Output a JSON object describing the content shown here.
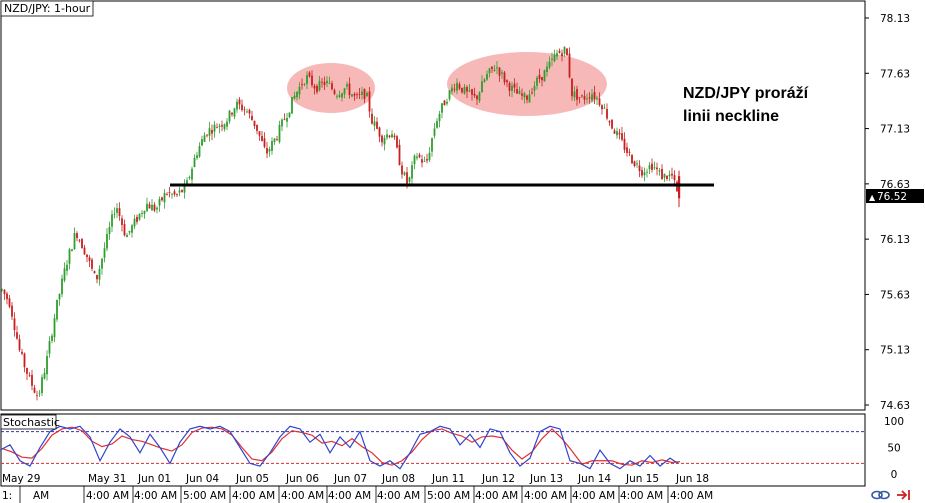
{
  "chart_data": {
    "type": "candlestick",
    "title": "NZD/JPY: 1-hour",
    "annotation": [
      "NZD/JPY proráží",
      "linii neckline"
    ],
    "y_ticks": [
      78.13,
      77.63,
      77.13,
      76.63,
      76.13,
      75.63,
      75.13,
      74.63
    ],
    "ylim": [
      74.5,
      78.3
    ],
    "last_price": "76.52",
    "neckline": 76.62,
    "x_labels": [
      "May 29",
      "May 31",
      "Jun 01",
      "Jun 04",
      "Jun 05",
      "Jun 06",
      "Jun 07",
      "Jun 08",
      "Jun 11",
      "Jun 12",
      "Jun 13",
      "Jun 14",
      "Jun 15",
      "Jun 18"
    ],
    "x_time_labels": [
      "1:",
      "AM",
      "4:00 AM",
      "4:00 AM",
      "5:00 AM",
      "4:00 AM",
      "4:00 AM",
      "4:00 AM",
      "4:00 AM",
      "5:00 AM",
      "4:00 AM",
      "4:00 AM",
      "4:00 AM",
      "4:00 AM",
      "4:00 AM"
    ],
    "price_path": [
      [
        0,
        75.7
      ],
      [
        10,
        75.55
      ],
      [
        20,
        75.1
      ],
      [
        30,
        74.85
      ],
      [
        38,
        74.7
      ],
      [
        46,
        75.0
      ],
      [
        56,
        75.5
      ],
      [
        66,
        75.9
      ],
      [
        76,
        76.2
      ],
      [
        86,
        76.0
      ],
      [
        96,
        75.75
      ],
      [
        106,
        76.1
      ],
      [
        116,
        76.45
      ],
      [
        126,
        76.15
      ],
      [
        136,
        76.3
      ],
      [
        146,
        76.45
      ],
      [
        156,
        76.4
      ],
      [
        166,
        76.55
      ],
      [
        176,
        76.52
      ],
      [
        186,
        76.6
      ],
      [
        196,
        76.9
      ],
      [
        206,
        77.1
      ],
      [
        216,
        77.15
      ],
      [
        226,
        77.2
      ],
      [
        236,
        77.35
      ],
      [
        246,
        77.3
      ],
      [
        256,
        77.15
      ],
      [
        266,
        76.9
      ],
      [
        276,
        77.05
      ],
      [
        286,
        77.25
      ],
      [
        296,
        77.45
      ],
      [
        306,
        77.6
      ],
      [
        316,
        77.5
      ],
      [
        326,
        77.55
      ],
      [
        336,
        77.45
      ],
      [
        346,
        77.5
      ],
      [
        356,
        77.4
      ],
      [
        366,
        77.45
      ],
      [
        372,
        77.2
      ],
      [
        382,
        77.05
      ],
      [
        392,
        77.1
      ],
      [
        402,
        76.75
      ],
      [
        408,
        76.62
      ],
      [
        416,
        76.9
      ],
      [
        426,
        76.8
      ],
      [
        436,
        77.2
      ],
      [
        446,
        77.4
      ],
      [
        456,
        77.55
      ],
      [
        466,
        77.45
      ],
      [
        476,
        77.4
      ],
      [
        486,
        77.6
      ],
      [
        496,
        77.7
      ],
      [
        506,
        77.55
      ],
      [
        516,
        77.45
      ],
      [
        526,
        77.4
      ],
      [
        536,
        77.55
      ],
      [
        546,
        77.65
      ],
      [
        556,
        77.8
      ],
      [
        566,
        77.85
      ],
      [
        572,
        77.45
      ],
      [
        582,
        77.4
      ],
      [
        592,
        77.45
      ],
      [
        602,
        77.35
      ],
      [
        612,
        77.15
      ],
      [
        622,
        77.0
      ],
      [
        632,
        76.85
      ],
      [
        642,
        76.75
      ],
      [
        652,
        76.8
      ],
      [
        662,
        76.7
      ],
      [
        672,
        76.7
      ],
      [
        678,
        76.52
      ]
    ],
    "stochastic": {
      "label": "Stochastic",
      "levels": [
        80,
        20
      ],
      "ticks": [
        100,
        50,
        0
      ],
      "k": [
        [
          0,
          45
        ],
        [
          10,
          55
        ],
        [
          20,
          25
        ],
        [
          30,
          15
        ],
        [
          40,
          50
        ],
        [
          50,
          80
        ],
        [
          60,
          90
        ],
        [
          70,
          85
        ],
        [
          80,
          90
        ],
        [
          90,
          70
        ],
        [
          100,
          25
        ],
        [
          110,
          60
        ],
        [
          120,
          85
        ],
        [
          130,
          70
        ],
        [
          140,
          40
        ],
        [
          150,
          75
        ],
        [
          160,
          50
        ],
        [
          170,
          20
        ],
        [
          180,
          60
        ],
        [
          190,
          85
        ],
        [
          200,
          90
        ],
        [
          210,
          85
        ],
        [
          220,
          90
        ],
        [
          230,
          80
        ],
        [
          240,
          50
        ],
        [
          250,
          20
        ],
        [
          260,
          15
        ],
        [
          270,
          40
        ],
        [
          280,
          70
        ],
        [
          290,
          90
        ],
        [
          300,
          85
        ],
        [
          310,
          60
        ],
        [
          320,
          75
        ],
        [
          330,
          40
        ],
        [
          340,
          70
        ],
        [
          350,
          50
        ],
        [
          360,
          80
        ],
        [
          370,
          25
        ],
        [
          380,
          15
        ],
        [
          390,
          25
        ],
        [
          400,
          10
        ],
        [
          410,
          40
        ],
        [
          420,
          75
        ],
        [
          430,
          80
        ],
        [
          440,
          90
        ],
        [
          450,
          85
        ],
        [
          460,
          55
        ],
        [
          470,
          75
        ],
        [
          480,
          50
        ],
        [
          490,
          85
        ],
        [
          500,
          80
        ],
        [
          510,
          40
        ],
        [
          520,
          15
        ],
        [
          530,
          30
        ],
        [
          540,
          80
        ],
        [
          550,
          90
        ],
        [
          560,
          85
        ],
        [
          570,
          25
        ],
        [
          580,
          20
        ],
        [
          590,
          10
        ],
        [
          600,
          45
        ],
        [
          610,
          20
        ],
        [
          620,
          10
        ],
        [
          630,
          25
        ],
        [
          640,
          15
        ],
        [
          650,
          35
        ],
        [
          660,
          15
        ],
        [
          670,
          30
        ],
        [
          678,
          20
        ]
      ]
    }
  },
  "colors": {
    "bull": "#2E9E2E",
    "bear": "#C81E1E",
    "neckline": "#000000",
    "ellipse": "#F07E7E",
    "stoch_k": "#3344CC",
    "stoch_d": "#E03030",
    "level_line": "#3030C0",
    "level_line_low": "#D03030"
  },
  "icons": [
    "chain-link-icon",
    "arrow-right-icon"
  ]
}
